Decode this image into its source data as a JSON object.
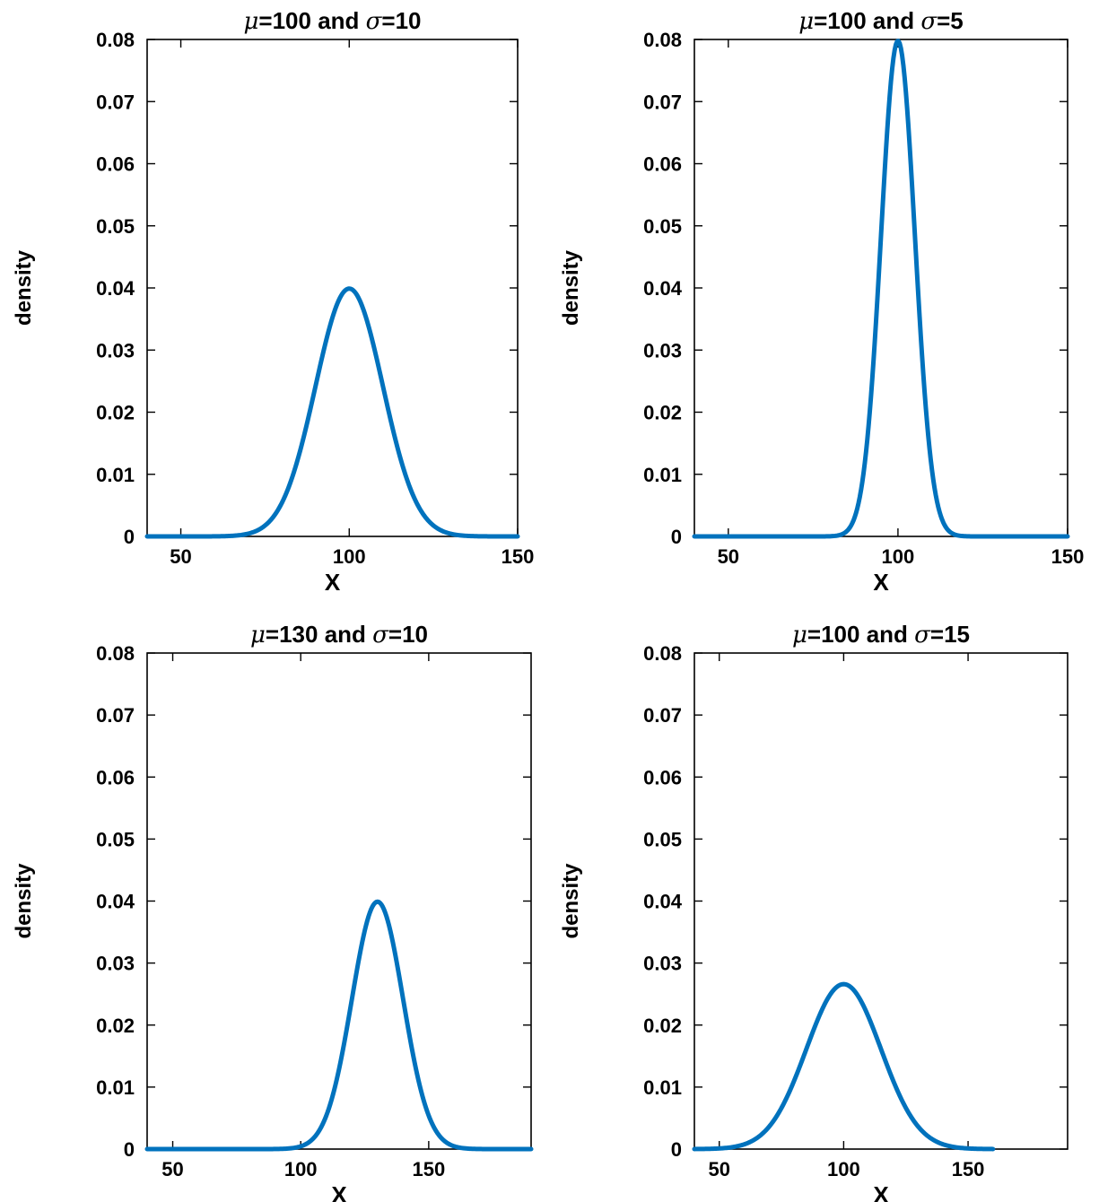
{
  "chart_data": [
    {
      "type": "line",
      "title": {
        "mu_symbol": "μ",
        "mu_value": "=100 and ",
        "sigma_symbol": "σ",
        "sigma_value": "=10"
      },
      "xlabel": "X",
      "ylabel": "density",
      "xlim": [
        40,
        150
      ],
      "ylim": [
        0,
        0.08
      ],
      "xticks": [
        50,
        100,
        150
      ],
      "yticks": [
        0,
        0.01,
        0.02,
        0.03,
        0.04,
        0.05,
        0.06,
        0.07,
        0.08
      ],
      "ytick_labels": [
        "0",
        "0.01",
        "0.02",
        "0.03",
        "0.04",
        "0.05",
        "0.06",
        "0.07",
        "0.08"
      ],
      "series": [
        {
          "mu": 100,
          "sigma": 10,
          "x_range": [
            40,
            150
          ],
          "peak_density": 0.0399
        }
      ],
      "line_color": "#0072BD",
      "grid": false
    },
    {
      "type": "line",
      "title": {
        "mu_symbol": "μ",
        "mu_value": "=100 and ",
        "sigma_symbol": "σ",
        "sigma_value": "=5"
      },
      "xlabel": "X",
      "ylabel": "density",
      "xlim": [
        40,
        150
      ],
      "ylim": [
        0,
        0.08
      ],
      "xticks": [
        50,
        100,
        150
      ],
      "yticks": [
        0,
        0.01,
        0.02,
        0.03,
        0.04,
        0.05,
        0.06,
        0.07,
        0.08
      ],
      "ytick_labels": [
        "0",
        "0.01",
        "0.02",
        "0.03",
        "0.04",
        "0.05",
        "0.06",
        "0.07",
        "0.08"
      ],
      "series": [
        {
          "mu": 100,
          "sigma": 5,
          "x_range": [
            40,
            150
          ],
          "peak_density": 0.0798
        }
      ],
      "line_color": "#0072BD",
      "grid": false
    },
    {
      "type": "line",
      "title": {
        "mu_symbol": "μ",
        "mu_value": "=130 and ",
        "sigma_symbol": "σ",
        "sigma_value": "=10"
      },
      "xlabel": "X",
      "ylabel": "density",
      "xlim": [
        40,
        190
      ],
      "ylim": [
        0,
        0.08
      ],
      "xticks": [
        50,
        100,
        150
      ],
      "yticks": [
        0,
        0.01,
        0.02,
        0.03,
        0.04,
        0.05,
        0.06,
        0.07,
        0.08
      ],
      "ytick_labels": [
        "0",
        "0.01",
        "0.02",
        "0.03",
        "0.04",
        "0.05",
        "0.06",
        "0.07",
        "0.08"
      ],
      "series": [
        {
          "mu": 130,
          "sigma": 10,
          "x_range": [
            40,
            190
          ],
          "peak_density": 0.0399
        }
      ],
      "line_color": "#0072BD",
      "grid": false
    },
    {
      "type": "line",
      "title": {
        "mu_symbol": "μ",
        "mu_value": "=100 and ",
        "sigma_symbol": "σ",
        "sigma_value": "=15"
      },
      "xlabel": "X",
      "ylabel": "density",
      "xlim": [
        40,
        190
      ],
      "ylim": [
        0,
        0.08
      ],
      "xticks": [
        50,
        100,
        150
      ],
      "yticks": [
        0,
        0.01,
        0.02,
        0.03,
        0.04,
        0.05,
        0.06,
        0.07,
        0.08
      ],
      "ytick_labels": [
        "0",
        "0.01",
        "0.02",
        "0.03",
        "0.04",
        "0.05",
        "0.06",
        "0.07",
        "0.08"
      ],
      "series": [
        {
          "mu": 100,
          "sigma": 15,
          "x_range": [
            40,
            160
          ],
          "peak_density": 0.0266
        }
      ],
      "line_color": "#0072BD",
      "grid": false
    }
  ]
}
